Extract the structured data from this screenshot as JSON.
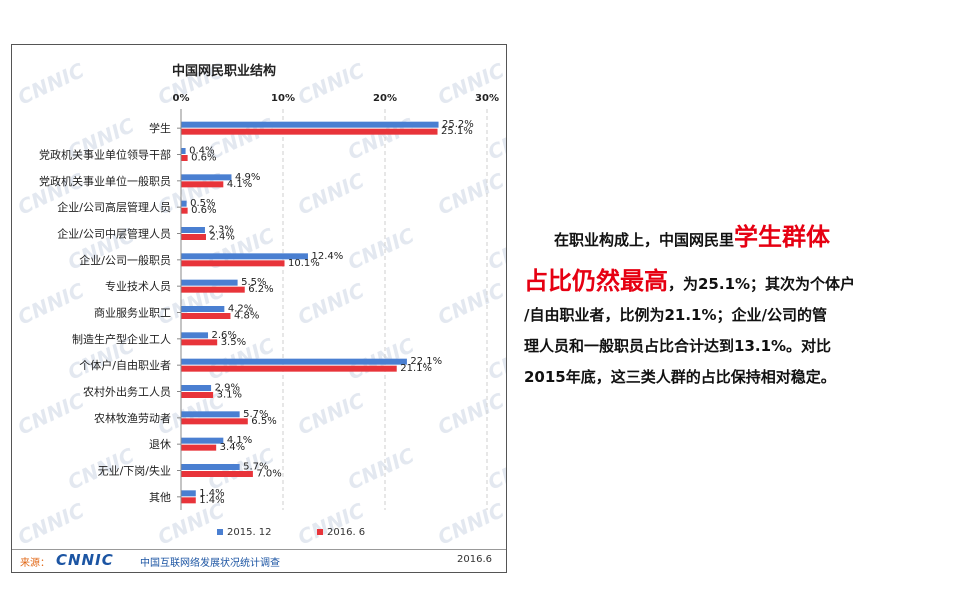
{
  "chart_data": {
    "type": "bar",
    "orientation": "horizontal",
    "title": "中国网民职业结构",
    "categories": [
      "学生",
      "党政机关事业单位领导干部",
      "党政机关事业单位一般职员",
      "企业/公司高层管理人员",
      "企业/公司中层管理人员",
      "企业/公司一般职员",
      "专业技术人员",
      "商业服务业职工",
      "制造生产型企业工人",
      "个体户/自由职业者",
      "农村外出务工人员",
      "农林牧渔劳动者",
      "退休",
      "无业/下岗/失业",
      "其他"
    ],
    "series": [
      {
        "name": "2015. 12",
        "color": "#4a7fd1",
        "values": [
          25.2,
          0.4,
          4.9,
          0.5,
          2.3,
          12.4,
          5.5,
          4.2,
          2.6,
          22.1,
          2.9,
          5.7,
          4.1,
          5.7,
          1.4
        ]
      },
      {
        "name": "2016. 6",
        "color": "#e8343a",
        "values": [
          25.1,
          0.6,
          4.1,
          0.6,
          2.4,
          10.1,
          6.2,
          4.8,
          3.5,
          21.1,
          3.1,
          6.5,
          3.4,
          7.0,
          1.4
        ]
      }
    ],
    "xlim": [
      0,
      30
    ],
    "ticks": [
      "0%",
      "10%",
      "20%",
      "30%"
    ],
    "value_format": "percent",
    "grid": true,
    "legend_position": "bottom",
    "watermark": "CNNIC"
  },
  "footer": {
    "source_label": "来源：",
    "logo": "CNNIC",
    "survey": "中国互联网络发展状况统计调查",
    "date": "2016.6"
  },
  "text": {
    "p1": "在职业构成上，中国网民里",
    "hl1": "学生群体",
    "hl2": "占比仍然最高",
    "p2": "，为25.1%；其次为个体户",
    "p3": "/自由职业者，比例为21.1%；企业/公司的管",
    "p4": "理人员和一般职员占比合计达到13.1%。对比",
    "p5": "2015年底，这三类人群的占比保持相对稳定。"
  }
}
